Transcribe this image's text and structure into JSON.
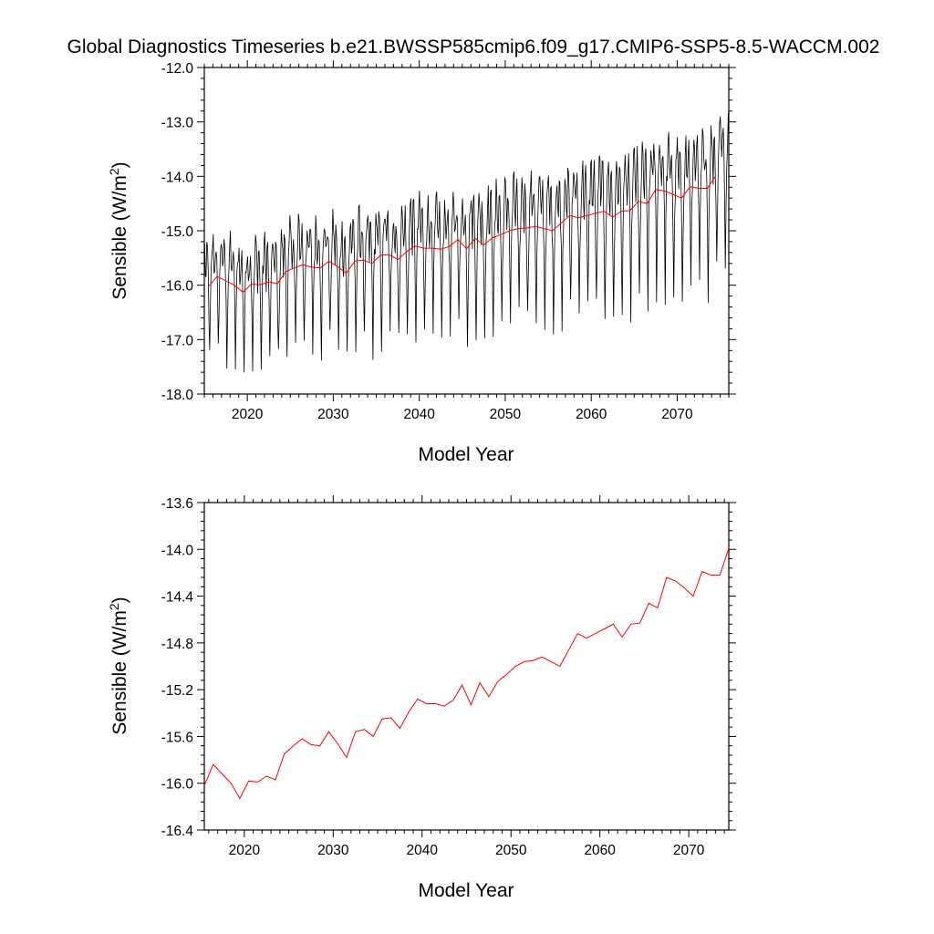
{
  "title": "Global Diagnostics Timeseries b.e21.BWSSP585cmip6.f09_g17.CMIP6-SSP5-8.5-WACCM.002",
  "colors": {
    "monthly": "#000000",
    "annual": "#ff0000",
    "frame": "#000000"
  },
  "chart_data": [
    {
      "type": "line",
      "title": "Global Diagnostics Timeseries b.e21.BWSSP585cmip6.f09_g17.CMIP6-SSP5-8.5-WACCM.002",
      "xlabel": "Model Year",
      "ylabel": "Sensible (W/m",
      "ylabel_sup": "2",
      "ylabel_close": ")",
      "xlim": [
        2015,
        2076
      ],
      "ylim": [
        -18.0,
        -12.0
      ],
      "xticks": [
        2020,
        2030,
        2040,
        2050,
        2060,
        2070
      ],
      "xtick_labels": [
        "2020",
        "2030",
        "2040",
        "2050",
        "2060",
        "2070"
      ],
      "yticks": [
        -18.0,
        -17.0,
        -16.0,
        -15.0,
        -14.0,
        -13.0,
        -12.0
      ],
      "ytick_labels": [
        "-18.0",
        "-17.0",
        "-16.0",
        "-15.0",
        "-14.0",
        "-13.0",
        "-12.0"
      ],
      "grid": false,
      "legend": "none",
      "series": [
        {
          "role": "monthly",
          "color": "#000000",
          "x_start": 2015.04,
          "x_step": 0.0833,
          "count": 732,
          "seasonal_cycle": {
            "trough_month": 7,
            "trough_depth_start": -1.4,
            "trough_depth_end": -1.9,
            "peak_height_start": 0.7,
            "peak_height_end": 0.9
          },
          "follows": "annual"
        },
        {
          "role": "annual",
          "color": "#ff0000",
          "x": [
            2015.5,
            2016.5,
            2017.5,
            2018.5,
            2019.5,
            2020.5,
            2021.5,
            2022.5,
            2023.5,
            2024.5,
            2025.5,
            2026.5,
            2027.5,
            2028.5,
            2029.5,
            2030.5,
            2031.5,
            2032.5,
            2033.5,
            2034.5,
            2035.5,
            2036.5,
            2037.5,
            2038.5,
            2039.5,
            2040.5,
            2041.5,
            2042.5,
            2043.5,
            2044.5,
            2045.5,
            2046.5,
            2047.5,
            2048.5,
            2049.5,
            2050.5,
            2051.5,
            2052.5,
            2053.5,
            2054.5,
            2055.5,
            2056.5,
            2057.5,
            2058.5,
            2059.5,
            2060.5,
            2061.5,
            2062.5,
            2063.5,
            2064.5,
            2065.5,
            2066.5,
            2067.5,
            2068.5,
            2069.5,
            2070.5,
            2071.5,
            2072.5,
            2073.5,
            2074.5
          ],
          "values": [
            -16.02,
            -15.84,
            -15.92,
            -16.0,
            -16.13,
            -15.98,
            -15.99,
            -15.94,
            -15.97,
            -15.75,
            -15.68,
            -15.62,
            -15.67,
            -15.68,
            -15.56,
            -15.66,
            -15.78,
            -15.56,
            -15.54,
            -15.6,
            -15.45,
            -15.44,
            -15.53,
            -15.39,
            -15.28,
            -15.32,
            -15.32,
            -15.34,
            -15.29,
            -15.16,
            -15.33,
            -15.14,
            -15.26,
            -15.13,
            -15.07,
            -15.0,
            -14.96,
            -14.95,
            -14.92,
            -14.96,
            -15.0,
            -14.86,
            -14.72,
            -14.76,
            -14.72,
            -14.68,
            -14.64,
            -14.75,
            -14.64,
            -14.63,
            -14.46,
            -14.5,
            -14.24,
            -14.27,
            -14.33,
            -14.4,
            -14.19,
            -14.22,
            -14.22,
            -13.99
          ]
        }
      ]
    },
    {
      "type": "line",
      "title": "",
      "xlabel": "Model Year",
      "ylabel": "Sensible (W/m",
      "ylabel_sup": "2",
      "ylabel_close": ")",
      "xlim": [
        2015.5,
        2074.5
      ],
      "ylim": [
        -16.4,
        -13.6
      ],
      "xticks": [
        2020,
        2030,
        2040,
        2050,
        2060,
        2070
      ],
      "xtick_labels": [
        "2020",
        "2030",
        "2040",
        "2050",
        "2060",
        "2070"
      ],
      "yticks": [
        -16.4,
        -16.0,
        -15.6,
        -15.2,
        -14.8,
        -14.4,
        -14.0,
        -13.6
      ],
      "ytick_labels": [
        "-16.4",
        "-16.0",
        "-15.6",
        "-15.2",
        "-14.8",
        "-14.4",
        "-14.0",
        "-13.6"
      ],
      "grid": false,
      "legend": "none",
      "series": [
        {
          "role": "annual",
          "color": "#ff0000",
          "x": [
            2015.5,
            2016.5,
            2017.5,
            2018.5,
            2019.5,
            2020.5,
            2021.5,
            2022.5,
            2023.5,
            2024.5,
            2025.5,
            2026.5,
            2027.5,
            2028.5,
            2029.5,
            2030.5,
            2031.5,
            2032.5,
            2033.5,
            2034.5,
            2035.5,
            2036.5,
            2037.5,
            2038.5,
            2039.5,
            2040.5,
            2041.5,
            2042.5,
            2043.5,
            2044.5,
            2045.5,
            2046.5,
            2047.5,
            2048.5,
            2049.5,
            2050.5,
            2051.5,
            2052.5,
            2053.5,
            2054.5,
            2055.5,
            2056.5,
            2057.5,
            2058.5,
            2059.5,
            2060.5,
            2061.5,
            2062.5,
            2063.5,
            2064.5,
            2065.5,
            2066.5,
            2067.5,
            2068.5,
            2069.5,
            2070.5,
            2071.5,
            2072.5,
            2073.5,
            2074.5
          ],
          "values": [
            -16.02,
            -15.84,
            -15.92,
            -16.0,
            -16.13,
            -15.98,
            -15.99,
            -15.94,
            -15.97,
            -15.75,
            -15.68,
            -15.62,
            -15.67,
            -15.68,
            -15.56,
            -15.66,
            -15.78,
            -15.56,
            -15.54,
            -15.6,
            -15.45,
            -15.44,
            -15.53,
            -15.39,
            -15.28,
            -15.32,
            -15.32,
            -15.34,
            -15.29,
            -15.16,
            -15.33,
            -15.14,
            -15.26,
            -15.13,
            -15.07,
            -15.0,
            -14.96,
            -14.95,
            -14.92,
            -14.96,
            -15.0,
            -14.86,
            -14.72,
            -14.76,
            -14.72,
            -14.68,
            -14.64,
            -14.75,
            -14.64,
            -14.63,
            -14.46,
            -14.5,
            -14.24,
            -14.27,
            -14.33,
            -14.4,
            -14.19,
            -14.22,
            -14.22,
            -13.99
          ]
        }
      ]
    }
  ]
}
